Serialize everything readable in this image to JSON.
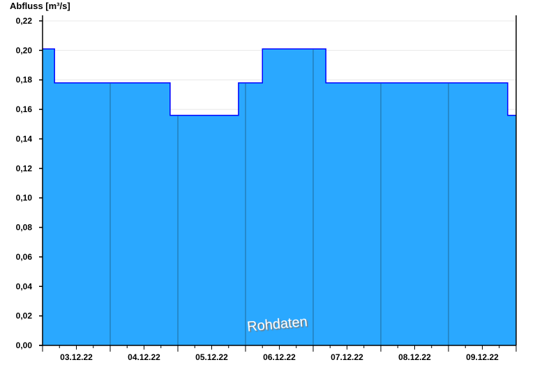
{
  "chart_data": {
    "type": "area",
    "step": true,
    "ylabel": "Abfluss [m³/s]",
    "ylim": [
      0,
      0.22
    ],
    "yticks": [
      "0,00",
      "0,02",
      "0,04",
      "0,06",
      "0,08",
      "0,10",
      "0,12",
      "0,14",
      "0,16",
      "0,18",
      "0,20",
      "0,22"
    ],
    "xlim": [
      "2022-12-03 00:00",
      "2022-12-10 00:00"
    ],
    "xticks": [
      "03.12.22",
      "04.12.22",
      "05.12.22",
      "06.12.22",
      "07.12.22",
      "08.12.22",
      "09.12.22"
    ],
    "grid": true,
    "watermark": "Rohdaten",
    "colors": {
      "fill": "#2aa8ff",
      "line": "#0000ff",
      "day_separator": "#1f6a9a",
      "grid": "#e8e8e8"
    },
    "series": [
      {
        "points": [
          [
            "2022-12-03 00:00",
            0.201
          ],
          [
            "2022-12-03 04:15",
            0.178
          ],
          [
            "2022-12-04 21:15",
            0.156
          ],
          [
            "2022-12-05 21:30",
            0.178
          ],
          [
            "2022-12-06 06:00",
            0.201
          ],
          [
            "2022-12-07 04:30",
            0.178
          ],
          [
            "2022-12-09 21:00",
            0.156
          ],
          [
            "2022-12-10 00:00",
            0.156
          ]
        ]
      }
    ]
  }
}
